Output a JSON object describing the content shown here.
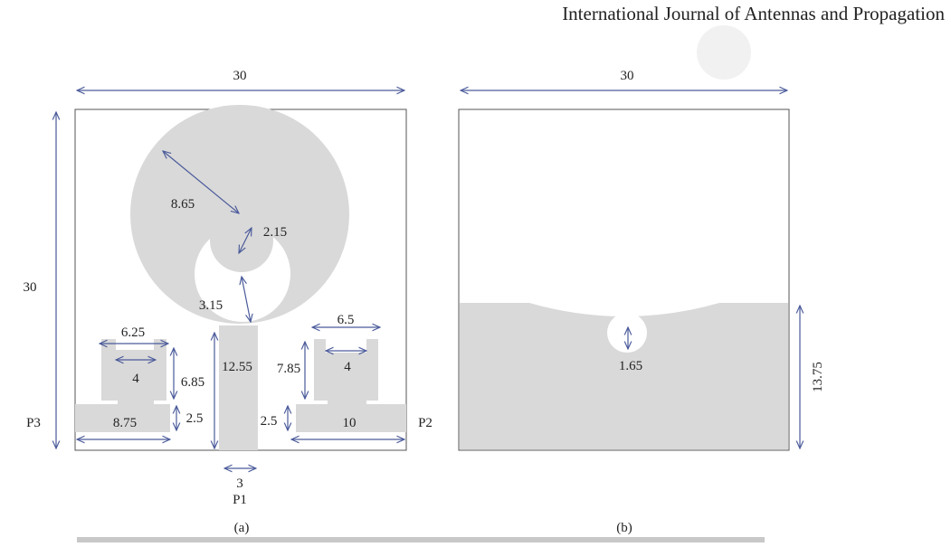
{
  "header": {
    "journal": "International Journal of Antennas and Propagation"
  },
  "figure_a": {
    "caption": "(a)",
    "dimensions": {
      "width": "30",
      "height": "30",
      "outer_radius": "8.65",
      "inner_radius": "2.15",
      "gap": "3.15",
      "feed_length": "12.55",
      "feed_width": "3",
      "left_stub_width": "6.25",
      "left_slot_width": "4",
      "left_stub_height": "6.85",
      "left_base_height": "2.5",
      "left_base_width": "8.75",
      "right_stub_width": "6.5",
      "right_slot_width": "4",
      "right_stub_height": "7.85",
      "right_base_height": "2.5",
      "right_base_width": "10"
    },
    "ports": {
      "p1": "P1",
      "p2": "P2",
      "p3": "P3"
    }
  },
  "figure_b": {
    "caption": "(b)",
    "dimensions": {
      "width": "30",
      "slot_diameter": "1.65",
      "ground_height": "13.75"
    }
  }
}
